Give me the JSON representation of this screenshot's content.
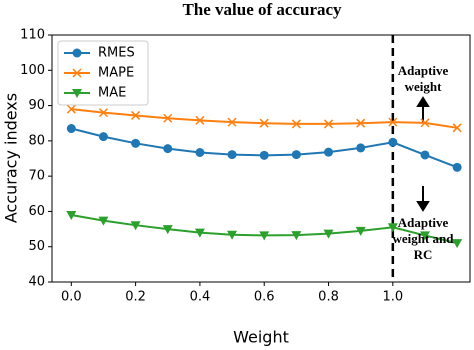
{
  "chart_data": {
    "type": "line",
    "title": "The value of accuracy",
    "x_label": "Weight",
    "y_label": "Accuracy indexs",
    "x": [
      0.0,
      0.1,
      0.2,
      0.3,
      0.4,
      0.5,
      0.6,
      0.7,
      0.8,
      0.9,
      1.0,
      1.1,
      1.2
    ],
    "series": [
      {
        "name": "RMES",
        "color": "#1f77b4",
        "marker": "circle",
        "values": [
          83.5,
          81.2,
          79.3,
          77.8,
          76.7,
          76.1,
          75.9,
          76.1,
          76.8,
          78.0,
          79.6,
          76.0,
          72.5
        ]
      },
      {
        "name": "MAPE",
        "color": "#ff7f0e",
        "marker": "x",
        "values": [
          89.0,
          88.0,
          87.2,
          86.4,
          85.8,
          85.3,
          85.0,
          84.8,
          84.8,
          85.0,
          85.3,
          85.1,
          83.7
        ]
      },
      {
        "name": "MAE",
        "color": "#2ca02c",
        "marker": "triangle-down",
        "values": [
          59.0,
          57.4,
          56.1,
          55.0,
          54.0,
          53.4,
          53.2,
          53.3,
          53.7,
          54.5,
          55.5,
          53.2,
          51.0
        ]
      }
    ],
    "xlim": [
      -0.06,
      1.24
    ],
    "ylim": [
      40,
      110
    ],
    "xticks": [
      {
        "value": 0,
        "label": "0.0"
      },
      0.2,
      0.4,
      0.6,
      0.8,
      {
        "value": 1,
        "label": "1.0"
      }
    ],
    "yticks": [
      40,
      50,
      60,
      70,
      80,
      90,
      100,
      110
    ],
    "legend": "upper-left",
    "reference_line": 1.0,
    "annotations": [
      [
        "Adaptive",
        "weight"
      ],
      [
        "Adaptive",
        "weight and",
        "RC"
      ]
    ]
  }
}
